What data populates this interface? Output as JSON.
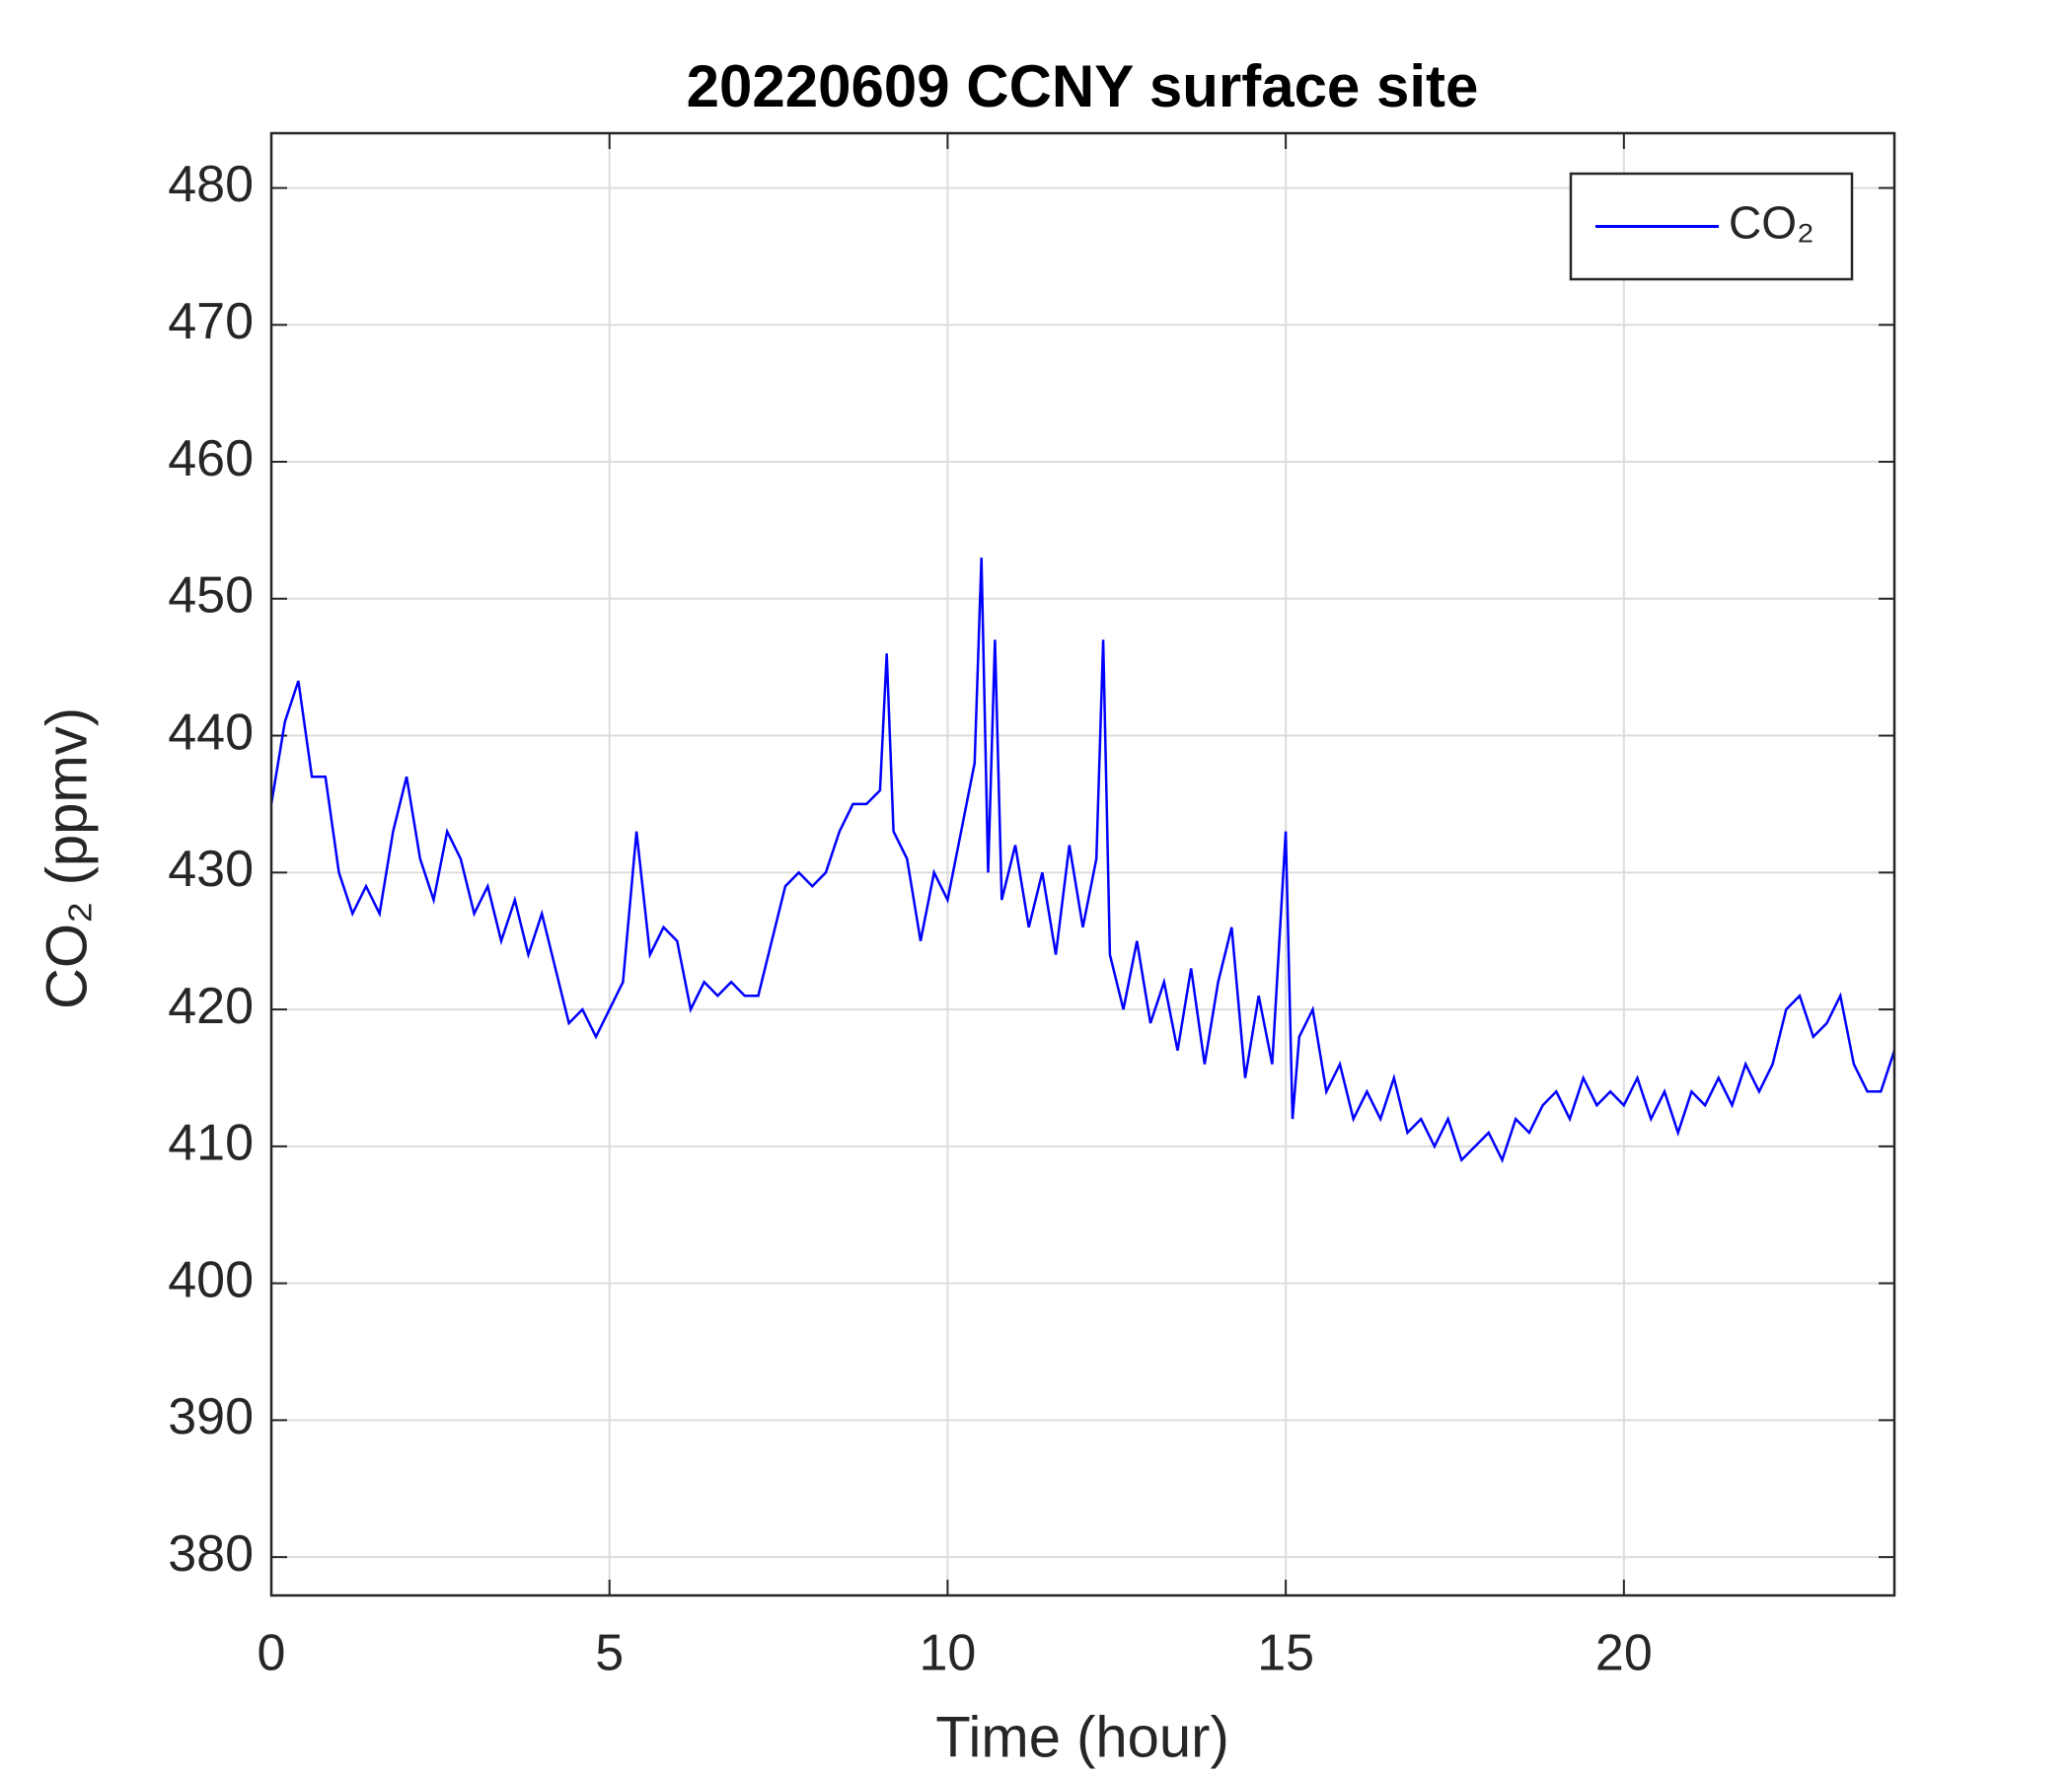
{
  "chart_data": {
    "type": "line",
    "title": "20220609 CCNY surface site",
    "xlabel": "Time (hour)",
    "ylabel": "CO₂ (ppmv)",
    "x": [
      0,
      0.2,
      0.4,
      0.6,
      0.8,
      1.0,
      1.2,
      1.4,
      1.6,
      1.8,
      2.0,
      2.2,
      2.4,
      2.6,
      2.8,
      3.0,
      3.2,
      3.4,
      3.6,
      3.8,
      4.0,
      4.2,
      4.4,
      4.6,
      4.8,
      5.0,
      5.2,
      5.4,
      5.6,
      5.8,
      6.0,
      6.2,
      6.4,
      6.6,
      6.8,
      7.0,
      7.2,
      7.4,
      7.6,
      7.8,
      8.0,
      8.2,
      8.4,
      8.6,
      8.8,
      9.0,
      9.1,
      9.2,
      9.4,
      9.6,
      9.8,
      10.0,
      10.2,
      10.4,
      10.5,
      10.6,
      10.7,
      10.8,
      11.0,
      11.2,
      11.4,
      11.6,
      11.8,
      12.0,
      12.2,
      12.3,
      12.4,
      12.6,
      12.8,
      13.0,
      13.2,
      13.4,
      13.6,
      13.8,
      14.0,
      14.2,
      14.4,
      14.6,
      14.8,
      15.0,
      15.1,
      15.2,
      15.4,
      15.6,
      15.8,
      16.0,
      16.2,
      16.4,
      16.6,
      16.8,
      17.0,
      17.2,
      17.4,
      17.6,
      17.8,
      18.0,
      18.2,
      18.4,
      18.6,
      18.8,
      19.0,
      19.2,
      19.4,
      19.6,
      19.8,
      20.0,
      20.2,
      20.4,
      20.6,
      20.8,
      21.0,
      21.2,
      21.4,
      21.6,
      21.8,
      22.0,
      22.2,
      22.4,
      22.6,
      22.8,
      23.0,
      23.2,
      23.4,
      23.6,
      23.8,
      24.0
    ],
    "series": [
      {
        "name": "CO₂",
        "color": "#0000ff",
        "values": [
          435,
          441,
          444,
          437,
          437,
          430,
          427,
          429,
          427,
          433,
          437,
          431,
          428,
          433,
          431,
          427,
          429,
          425,
          428,
          424,
          427,
          423,
          419,
          420,
          418,
          420,
          422,
          433,
          424,
          426,
          425,
          420,
          422,
          421,
          422,
          421,
          421,
          425,
          429,
          430,
          429,
          430,
          433,
          435,
          435,
          436,
          446,
          433,
          431,
          425,
          430,
          428,
          433,
          438,
          453,
          430,
          447,
          428,
          432,
          426,
          430,
          424,
          432,
          426,
          431,
          447,
          424,
          420,
          425,
          419,
          422,
          417,
          423,
          416,
          422,
          426,
          415,
          421,
          416,
          433,
          412,
          418,
          420,
          414,
          416,
          412,
          414,
          412,
          415,
          411,
          412,
          410,
          412,
          409,
          410,
          411,
          409,
          412,
          411,
          413,
          414,
          412,
          415,
          413,
          414,
          413,
          415,
          412,
          414,
          411,
          414,
          413,
          415,
          413,
          416,
          414,
          416,
          420,
          421,
          418,
          419,
          421,
          416,
          414,
          414,
          417
        ]
      }
    ],
    "xlim": [
      0,
      24
    ],
    "ylim": [
      377.2,
      484
    ],
    "xticks": [
      0,
      5,
      10,
      15,
      20
    ],
    "yticks": [
      380,
      390,
      400,
      410,
      420,
      430,
      440,
      450,
      460,
      470,
      480
    ],
    "grid": true,
    "legend": "northeast"
  }
}
